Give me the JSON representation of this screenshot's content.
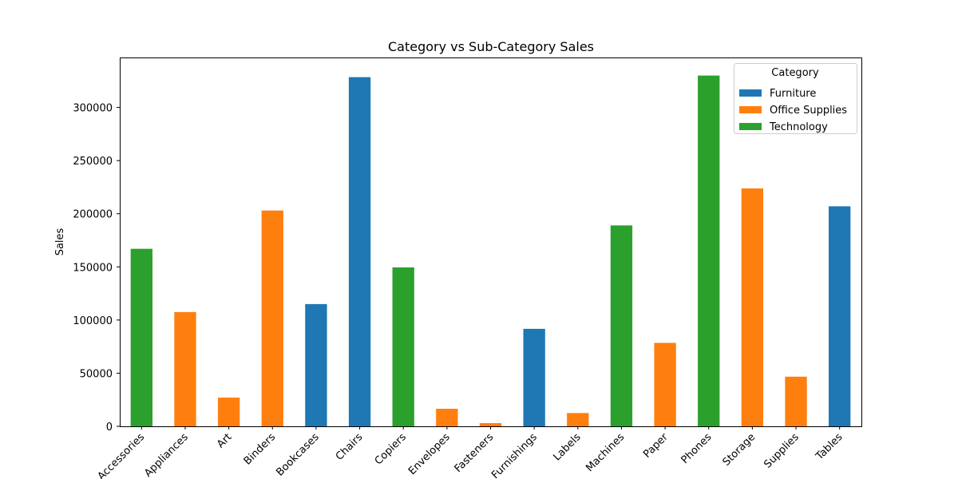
{
  "chart_data": {
    "type": "bar",
    "title": "Category vs Sub-Category Sales",
    "xlabel": "",
    "ylabel": "Sales",
    "ylim": [
      0,
      347000
    ],
    "yticks": [
      0,
      50000,
      100000,
      150000,
      200000,
      250000,
      300000
    ],
    "grid": false,
    "legend": {
      "title": "Category",
      "placement": "top-right",
      "entries": [
        {
          "name": "Furniture",
          "color": "#1f77b4"
        },
        {
          "name": "Office Supplies",
          "color": "#ff7f0e"
        },
        {
          "name": "Technology",
          "color": "#2ca02c"
        }
      ]
    },
    "categories": [
      "Accessories",
      "Appliances",
      "Art",
      "Binders",
      "Bookcases",
      "Chairs",
      "Copiers",
      "Envelopes",
      "Fasteners",
      "Furnishings",
      "Labels",
      "Machines",
      "Paper",
      "Phones",
      "Storage",
      "Supplies",
      "Tables"
    ],
    "bars": [
      {
        "category": "Accessories",
        "group": "Technology",
        "value": 167000
      },
      {
        "category": "Appliances",
        "group": "Office Supplies",
        "value": 107500
      },
      {
        "category": "Art",
        "group": "Office Supplies",
        "value": 27000
      },
      {
        "category": "Binders",
        "group": "Office Supplies",
        "value": 203000
      },
      {
        "category": "Bookcases",
        "group": "Furniture",
        "value": 115000
      },
      {
        "category": "Chairs",
        "group": "Furniture",
        "value": 328500
      },
      {
        "category": "Copiers",
        "group": "Technology",
        "value": 149500
      },
      {
        "category": "Envelopes",
        "group": "Office Supplies",
        "value": 16500
      },
      {
        "category": "Fasteners",
        "group": "Office Supplies",
        "value": 3000
      },
      {
        "category": "Furnishings",
        "group": "Furniture",
        "value": 91700
      },
      {
        "category": "Labels",
        "group": "Office Supplies",
        "value": 12500
      },
      {
        "category": "Machines",
        "group": "Technology",
        "value": 189000
      },
      {
        "category": "Paper",
        "group": "Office Supplies",
        "value": 78500
      },
      {
        "category": "Phones",
        "group": "Technology",
        "value": 330000
      },
      {
        "category": "Storage",
        "group": "Office Supplies",
        "value": 223800
      },
      {
        "category": "Supplies",
        "group": "Office Supplies",
        "value": 46700
      },
      {
        "category": "Tables",
        "group": "Furniture",
        "value": 207000
      }
    ]
  }
}
